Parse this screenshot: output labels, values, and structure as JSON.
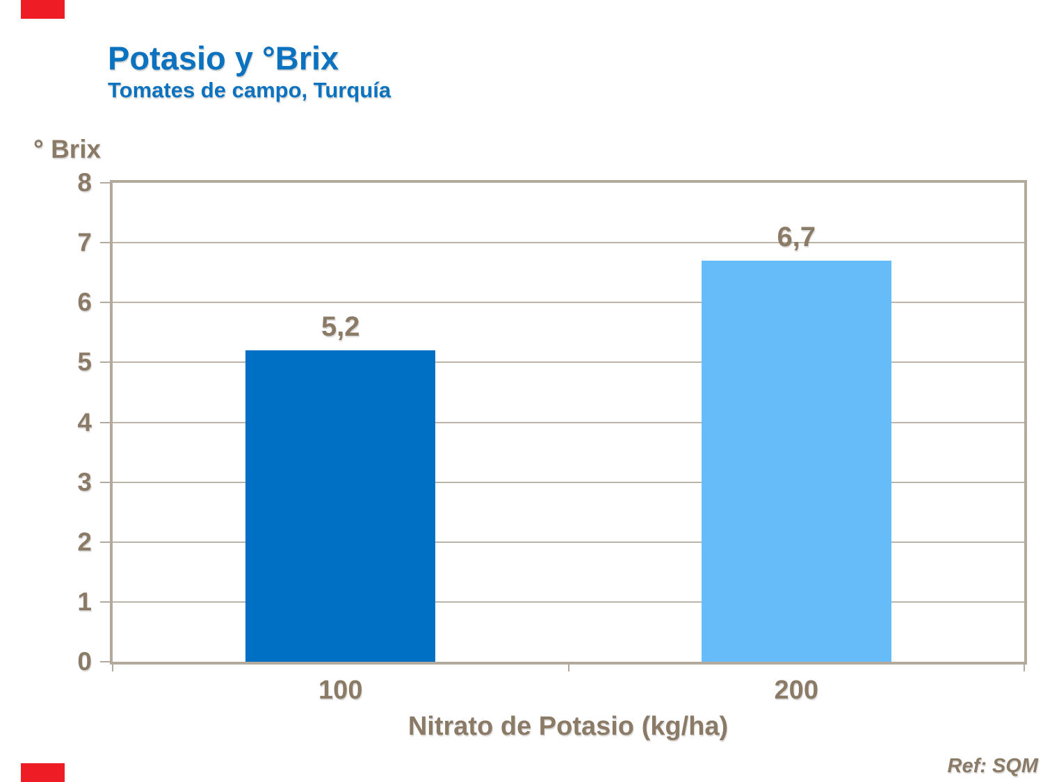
{
  "decor": {
    "red_color": "#ee1c25"
  },
  "header": {
    "title": "Potasio y °Brix",
    "subtitle": "Tomates de campo, Turquía",
    "title_color": "#0b72c0"
  },
  "footer": {
    "ref": "Ref: SQM"
  },
  "chart_data": {
    "type": "bar",
    "categories": [
      "100",
      "200"
    ],
    "values": [
      5.2,
      6.7
    ],
    "value_labels": [
      "5,2",
      "6,7"
    ],
    "bar_colors": [
      "#0070c4",
      "#66bcf8"
    ],
    "title": "Potasio y °Brix",
    "subtitle": "Tomates de campo, Turquía",
    "xlabel": "Nitrato de Potasio (kg/ha)",
    "ylabel": "° Brix",
    "ylim": [
      0,
      8
    ],
    "yticks": [
      0,
      1,
      2,
      3,
      4,
      5,
      6,
      7,
      8
    ],
    "grid": true,
    "legend": false,
    "text_color": "#8a7a66",
    "grid_color": "#bdb4a8",
    "frame_color": "#b3a99d"
  }
}
